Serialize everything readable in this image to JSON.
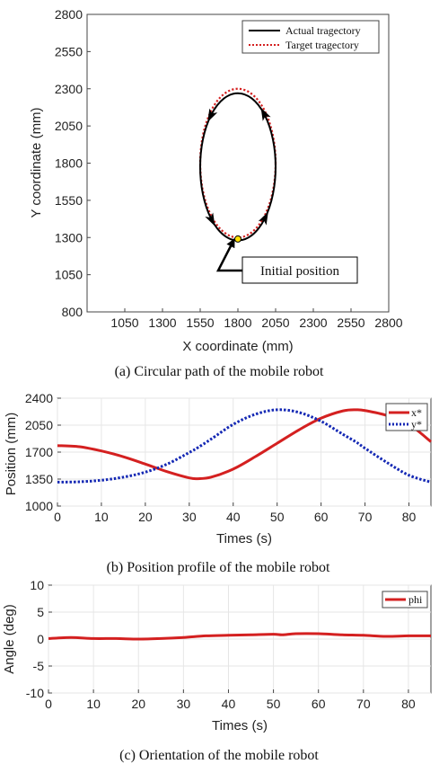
{
  "colors": {
    "actual": "#000000",
    "target": "#d42020",
    "x": "#d42020",
    "y": "#1428b4",
    "phi": "#d42020",
    "grid": "#e6e6e6",
    "marker": "#ffe000"
  },
  "chart_data": [
    {
      "type": "line",
      "title": "",
      "caption": "(a) Circular path of the mobile robot",
      "xlabel": "X coordinate (mm)",
      "ylabel": "Y coordinate (mm)",
      "xlim": [
        800,
        2800
      ],
      "ylim": [
        800,
        2800
      ],
      "xticks": [
        "1050",
        "1300",
        "1550",
        "1800",
        "2050",
        "2300",
        "2550",
        "2800"
      ],
      "yticks": [
        "800",
        "1050",
        "1300",
        "1550",
        "1800",
        "2050",
        "2300",
        "2550",
        "2800"
      ],
      "xtick_values": [
        1050,
        1300,
        1550,
        1800,
        2050,
        2300,
        2550,
        2800
      ],
      "ytick_values": [
        800,
        1050,
        1300,
        1550,
        1800,
        2050,
        2300,
        2550,
        2800
      ],
      "grid": false,
      "legend": {
        "position": "top-right",
        "entries": [
          "Actual tragectory",
          "Target tragectory"
        ]
      },
      "series": [
        {
          "name": "Actual tragectory",
          "style": "solid",
          "shape": "circle",
          "center": [
            1800,
            1775
          ],
          "radius_x": 250,
          "radius_y": 495
        },
        {
          "name": "Target tragectory",
          "style": "dotted",
          "shape": "circle",
          "center": [
            1800,
            1800
          ],
          "radius_x": 250,
          "radius_y": 500
        }
      ],
      "initial_position": {
        "x": 1800,
        "y": 1290
      },
      "annotation": "Initial position"
    },
    {
      "type": "line",
      "title": "",
      "caption": "(b) Position profile of the mobile robot",
      "xlabel": "Times (s)",
      "ylabel": "Position (mm)",
      "xlim": [
        0,
        85
      ],
      "ylim": [
        1000,
        2400
      ],
      "xticks": [
        "0",
        "10",
        "20",
        "30",
        "40",
        "50",
        "60",
        "70",
        "80"
      ],
      "yticks": [
        "1000",
        "1350",
        "1700",
        "2050",
        "2400"
      ],
      "xtick_values": [
        0,
        10,
        20,
        30,
        40,
        50,
        60,
        70,
        80
      ],
      "ytick_values": [
        1000,
        1350,
        1700,
        2050,
        2400
      ],
      "grid": true,
      "legend": {
        "position": "top-right",
        "entries": [
          "x*",
          "y*"
        ]
      },
      "x": [
        0,
        5,
        10,
        15,
        20,
        25,
        30,
        32,
        35,
        40,
        45,
        50,
        55,
        60,
        65,
        68,
        70,
        75,
        80,
        85
      ],
      "series": [
        {
          "name": "x*",
          "style": "solid",
          "values": [
            1785,
            1770,
            1715,
            1640,
            1545,
            1445,
            1365,
            1355,
            1375,
            1480,
            1640,
            1815,
            1990,
            2140,
            2235,
            2250,
            2240,
            2175,
            2060,
            1835
          ]
        },
        {
          "name": "y*",
          "style": "dotted",
          "values": [
            1310,
            1315,
            1335,
            1375,
            1440,
            1545,
            1695,
            1760,
            1870,
            2060,
            2190,
            2250,
            2215,
            2100,
            1930,
            1830,
            1750,
            1565,
            1400,
            1310
          ]
        }
      ]
    },
    {
      "type": "line",
      "title": "",
      "caption": "(c) Orientation of the mobile robot",
      "xlabel": "Times (s)",
      "ylabel": "Angle (deg)",
      "xlim": [
        0,
        85
      ],
      "ylim": [
        -10,
        10
      ],
      "xticks": [
        "0",
        "10",
        "20",
        "30",
        "40",
        "50",
        "60",
        "70",
        "80"
      ],
      "yticks": [
        "-10",
        "-5",
        "0",
        "5",
        "10"
      ],
      "xtick_values": [
        0,
        10,
        20,
        30,
        40,
        50,
        60,
        70,
        80
      ],
      "ytick_values": [
        -10,
        -5,
        0,
        5,
        10
      ],
      "grid": true,
      "legend": {
        "position": "top-right",
        "entries": [
          "phi"
        ]
      },
      "x": [
        0,
        5,
        10,
        15,
        20,
        25,
        30,
        35,
        40,
        45,
        50,
        52,
        55,
        60,
        65,
        70,
        75,
        80,
        85
      ],
      "series": [
        {
          "name": "phi",
          "style": "solid",
          "values": [
            0.1,
            0.3,
            0.1,
            0.1,
            0.0,
            0.1,
            0.3,
            0.6,
            0.7,
            0.8,
            0.9,
            0.8,
            1.0,
            1.0,
            0.8,
            0.7,
            0.5,
            0.6,
            0.6
          ]
        }
      ]
    }
  ]
}
